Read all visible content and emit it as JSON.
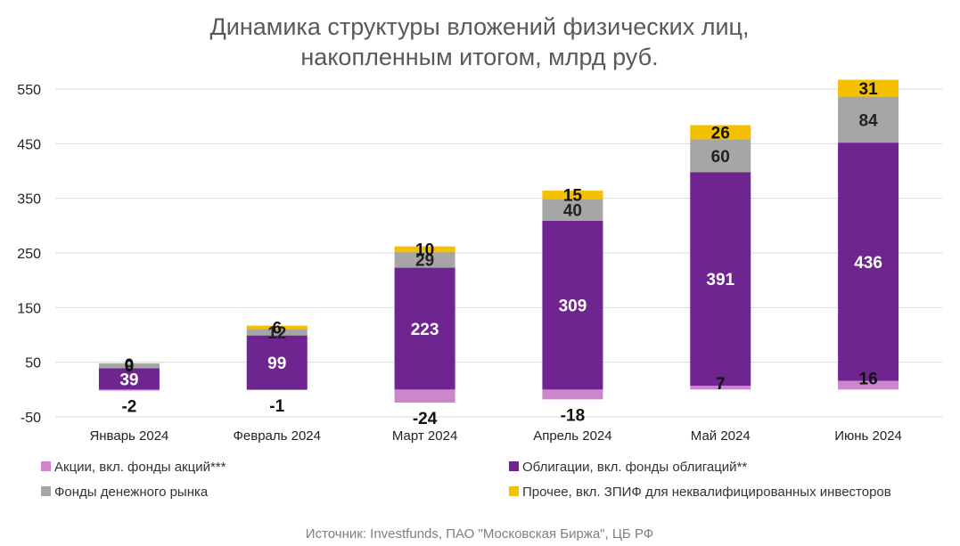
{
  "chart_data": {
    "type": "bar",
    "stacked": true,
    "title_lines": [
      "Динамика структуры вложений физических лиц,",
      "накопленным итогом, млрд руб."
    ],
    "categories": [
      "Январь 2024",
      "Февраль 2024",
      "Март 2024",
      "Апрель 2024",
      "Май 2024",
      "Июнь 2024"
    ],
    "series": [
      {
        "name": "Акции, вкл. фонды акций***",
        "color": "#cc87cc",
        "values": [
          -2,
          -1,
          -24,
          -18,
          7,
          16
        ]
      },
      {
        "name": "Облигации, вкл. фонды облигаций**",
        "color": "#6e2590",
        "values": [
          39,
          99,
          223,
          309,
          391,
          436
        ]
      },
      {
        "name": "Фонды денежного рынка",
        "color": "#a6a6a6",
        "values": [
          9,
          12,
          29,
          40,
          60,
          84
        ]
      },
      {
        "name": "Прочее, вкл. ЗПИФ для неквалифицированных инвесторов",
        "color": "#f5c000",
        "values": [
          0,
          6,
          10,
          15,
          26,
          31
        ]
      }
    ],
    "ylim": [
      -50,
      550
    ],
    "yticks": [
      "-50",
      "50",
      "150",
      "250",
      "350",
      "450",
      "550"
    ],
    "grid": true,
    "legend_position": "bottom",
    "source": "Источник: Investfunds, ПАО \"Московская Биржа\", ЦБ РФ"
  }
}
